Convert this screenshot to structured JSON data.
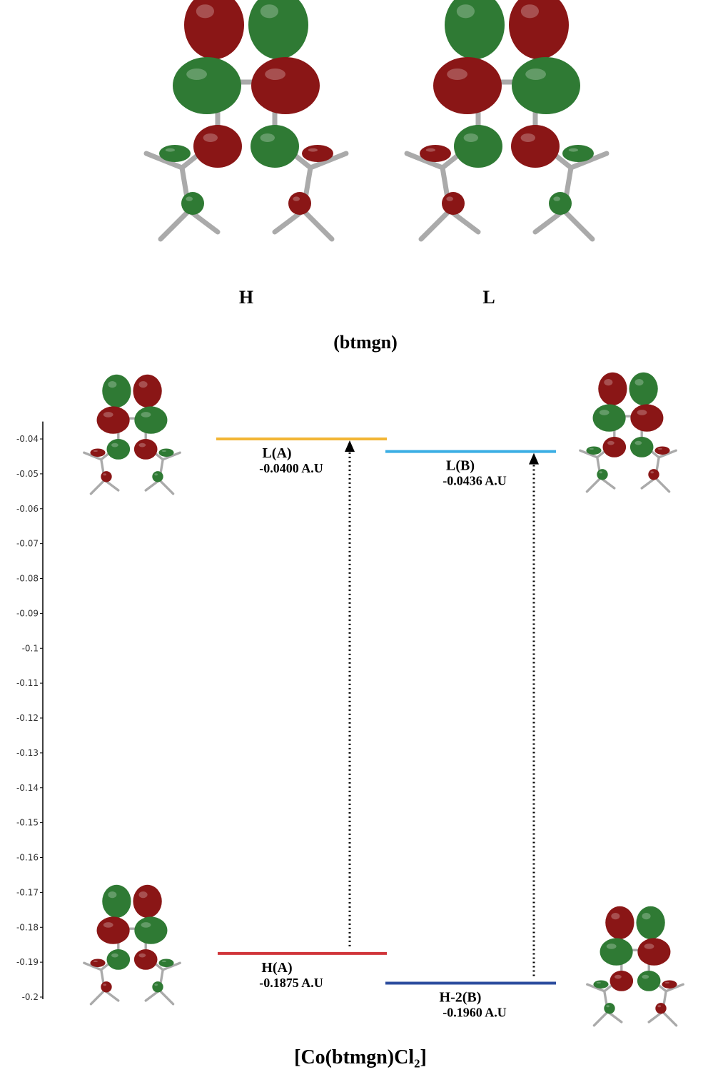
{
  "chart_data": {
    "type": "energy_levels",
    "ligand_orbital_labels": [
      "H",
      "L"
    ],
    "ligand_label": "(btmgn)",
    "title": "[Co(btmgn)Cl₂]",
    "ylim": [
      -0.2,
      -0.035
    ],
    "yticks": [
      -0.04,
      -0.05,
      -0.06,
      -0.07,
      -0.08,
      -0.09,
      -0.1,
      -0.11,
      -0.12,
      -0.13,
      -0.14,
      -0.15,
      -0.16,
      -0.17,
      -0.18,
      -0.19,
      -0.2
    ],
    "levels": [
      {
        "name": "L(A)",
        "value": -0.04,
        "value_label": "-0.0400 A.U",
        "color": "#f2b534"
      },
      {
        "name": "L(B)",
        "value": -0.0436,
        "value_label": "-0.0436 A.U",
        "color": "#3aaee4"
      },
      {
        "name": "H(A)",
        "value": -0.1875,
        "value_label": "-0.1875 A.U",
        "color": "#d0353a"
      },
      {
        "name": "H-2(B)",
        "value": -0.196,
        "value_label": "-0.1960 A.U",
        "color": "#2c4d9e"
      }
    ]
  }
}
